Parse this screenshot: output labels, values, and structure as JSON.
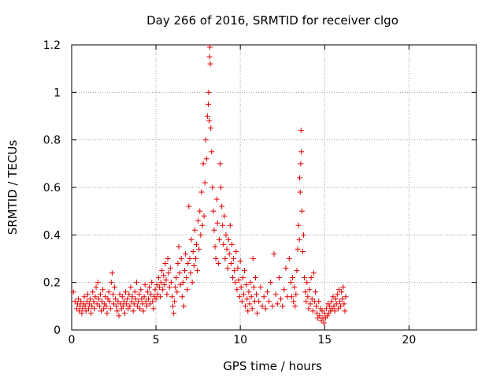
{
  "chart_data": {
    "type": "scatter",
    "title": "Day 266 of 2016, SRMTID for receiver clgo",
    "xlabel": "GPS time / hours",
    "ylabel": "SRMTID / TECUs",
    "xlim": [
      0,
      24
    ],
    "ylim": [
      0,
      1.2
    ],
    "xticks": [
      0,
      5,
      10,
      15,
      20
    ],
    "xtick_labels": [
      "0",
      "5",
      "10",
      "15",
      "20"
    ],
    "yticks": [
      0,
      0.2,
      0.4,
      0.6,
      0.8,
      1.0,
      1.2
    ],
    "ytick_labels": [
      "0",
      "0.2",
      "0.4",
      "0.6",
      "0.8",
      "1",
      "1.2"
    ],
    "grid": true,
    "marker": "+",
    "color": "#e00000",
    "series": [
      {
        "name": "SRMTID",
        "points": [
          [
            0.1,
            0.16
          ],
          [
            0.2,
            0.12
          ],
          [
            0.3,
            0.09
          ],
          [
            0.35,
            0.11
          ],
          [
            0.4,
            0.13
          ],
          [
            0.45,
            0.08
          ],
          [
            0.5,
            0.1
          ],
          [
            0.55,
            0.12
          ],
          [
            0.6,
            0.07
          ],
          [
            0.65,
            0.09
          ],
          [
            0.7,
            0.11
          ],
          [
            0.75,
            0.14
          ],
          [
            0.8,
            0.1
          ],
          [
            0.85,
            0.08
          ],
          [
            0.9,
            0.12
          ],
          [
            0.95,
            0.15
          ],
          [
            1.0,
            0.09
          ],
          [
            1.05,
            0.11
          ],
          [
            1.1,
            0.13
          ],
          [
            1.15,
            0.07
          ],
          [
            1.2,
            0.1
          ],
          [
            1.25,
            0.16
          ],
          [
            1.3,
            0.12
          ],
          [
            1.35,
            0.09
          ],
          [
            1.4,
            0.14
          ],
          [
            1.45,
            0.18
          ],
          [
            1.5,
            0.11
          ],
          [
            1.55,
            0.2
          ],
          [
            1.6,
            0.13
          ],
          [
            1.65,
            0.1
          ],
          [
            1.7,
            0.15
          ],
          [
            1.75,
            0.08
          ],
          [
            1.8,
            0.12
          ],
          [
            1.85,
            0.17
          ],
          [
            1.9,
            0.09
          ],
          [
            1.95,
            0.11
          ],
          [
            2.0,
            0.14
          ],
          [
            2.05,
            0.1
          ],
          [
            2.1,
            0.07
          ],
          [
            2.15,
            0.13
          ],
          [
            2.2,
            0.16
          ],
          [
            2.25,
            0.12
          ],
          [
            2.3,
            0.09
          ],
          [
            2.35,
            0.2
          ],
          [
            2.4,
            0.24
          ],
          [
            2.45,
            0.15
          ],
          [
            2.5,
            0.11
          ],
          [
            2.55,
            0.18
          ],
          [
            2.6,
            0.13
          ],
          [
            2.65,
            0.1
          ],
          [
            2.7,
            0.08
          ],
          [
            2.75,
            0.12
          ],
          [
            2.8,
            0.06
          ],
          [
            2.85,
            0.15
          ],
          [
            2.9,
            0.11
          ],
          [
            2.95,
            0.09
          ],
          [
            3.0,
            0.14
          ],
          [
            3.05,
            0.1
          ],
          [
            3.1,
            0.12
          ],
          [
            3.15,
            0.07
          ],
          [
            3.2,
            0.16
          ],
          [
            3.25,
            0.11
          ],
          [
            3.3,
            0.13
          ],
          [
            3.35,
            0.09
          ],
          [
            3.4,
            0.15
          ],
          [
            3.45,
            0.1
          ],
          [
            3.5,
            0.18
          ],
          [
            3.55,
            0.12
          ],
          [
            3.6,
            0.14
          ],
          [
            3.65,
            0.08
          ],
          [
            3.7,
            0.11
          ],
          [
            3.75,
            0.16
          ],
          [
            3.8,
            0.13
          ],
          [
            3.85,
            0.2
          ],
          [
            3.9,
            0.1
          ],
          [
            3.95,
            0.12
          ],
          [
            4.0,
            0.15
          ],
          [
            4.05,
            0.09
          ],
          [
            4.1,
            0.17
          ],
          [
            4.15,
            0.13
          ],
          [
            4.2,
            0.11
          ],
          [
            4.25,
            0.08
          ],
          [
            4.3,
            0.14
          ],
          [
            4.35,
            0.19
          ],
          [
            4.4,
            0.12
          ],
          [
            4.45,
            0.1
          ],
          [
            4.5,
            0.16
          ],
          [
            4.55,
            0.13
          ],
          [
            4.6,
            0.18
          ],
          [
            4.65,
            0.11
          ],
          [
            4.7,
            0.15
          ],
          [
            4.75,
            0.2
          ],
          [
            4.8,
            0.12
          ],
          [
            4.85,
            0.09
          ],
          [
            4.9,
            0.14
          ],
          [
            4.95,
            0.17
          ],
          [
            5.0,
            0.13
          ],
          [
            5.05,
            0.19
          ],
          [
            5.1,
            0.15
          ],
          [
            5.15,
            0.22
          ],
          [
            5.2,
            0.18
          ],
          [
            5.25,
            0.14
          ],
          [
            5.3,
            0.2
          ],
          [
            5.35,
            0.25
          ],
          [
            5.4,
            0.17
          ],
          [
            5.45,
            0.23
          ],
          [
            5.5,
            0.19
          ],
          [
            5.55,
            0.28
          ],
          [
            5.6,
            0.21
          ],
          [
            5.65,
            0.15
          ],
          [
            5.7,
            0.3
          ],
          [
            5.75,
            0.24
          ],
          [
            5.8,
            0.18
          ],
          [
            5.85,
            0.26
          ],
          [
            5.9,
            0.2
          ],
          [
            5.95,
            0.14
          ],
          [
            6.0,
            0.1
          ],
          [
            6.05,
            0.07
          ],
          [
            6.1,
            0.12
          ],
          [
            6.15,
            0.18
          ],
          [
            6.2,
            0.22
          ],
          [
            6.25,
            0.16
          ],
          [
            6.3,
            0.28
          ],
          [
            6.35,
            0.35
          ],
          [
            6.4,
            0.24
          ],
          [
            6.45,
            0.19
          ],
          [
            6.5,
            0.3
          ],
          [
            6.55,
            0.14
          ],
          [
            6.6,
            0.2
          ],
          [
            6.65,
            0.1
          ],
          [
            6.7,
            0.25
          ],
          [
            6.75,
            0.32
          ],
          [
            6.8,
            0.22
          ],
          [
            6.85,
            0.17
          ],
          [
            6.9,
            0.28
          ],
          [
            6.95,
            0.52
          ],
          [
            7.0,
            0.3
          ],
          [
            7.05,
            0.24
          ],
          [
            7.1,
            0.38
          ],
          [
            7.15,
            0.2
          ],
          [
            7.2,
            0.33
          ],
          [
            7.25,
            0.27
          ],
          [
            7.3,
            0.42
          ],
          [
            7.35,
            0.3
          ],
          [
            7.4,
            0.36
          ],
          [
            7.45,
            0.25
          ],
          [
            7.5,
            0.46
          ],
          [
            7.55,
            0.34
          ],
          [
            7.6,
            0.5
          ],
          [
            7.65,
            0.4
          ],
          [
            7.7,
            0.58
          ],
          [
            7.75,
            0.44
          ],
          [
            7.8,
            0.7
          ],
          [
            7.85,
            0.48
          ],
          [
            7.9,
            0.62
          ],
          [
            7.95,
            0.8
          ],
          [
            8.0,
            0.72
          ],
          [
            8.05,
            0.9
          ],
          [
            8.1,
            0.95
          ],
          [
            8.12,
            1.0
          ],
          [
            8.15,
            0.88
          ],
          [
            8.18,
            1.15
          ],
          [
            8.2,
            1.19
          ],
          [
            8.22,
            1.12
          ],
          [
            8.25,
            0.85
          ],
          [
            8.3,
            0.75
          ],
          [
            8.35,
            0.6
          ],
          [
            8.4,
            0.5
          ],
          [
            8.45,
            0.42
          ],
          [
            8.5,
            0.35
          ],
          [
            8.55,
            0.3
          ],
          [
            8.6,
            0.55
          ],
          [
            8.65,
            0.45
          ],
          [
            8.7,
            0.28
          ],
          [
            8.75,
            0.38
          ],
          [
            8.8,
            0.7
          ],
          [
            8.85,
            0.6
          ],
          [
            8.9,
            0.52
          ],
          [
            8.95,
            0.44
          ],
          [
            9.0,
            0.36
          ],
          [
            9.05,
            0.48
          ],
          [
            9.1,
            0.3
          ],
          [
            9.15,
            0.4
          ],
          [
            9.2,
            0.34
          ],
          [
            9.25,
            0.26
          ],
          [
            9.3,
            0.38
          ],
          [
            9.35,
            0.32
          ],
          [
            9.4,
            0.44
          ],
          [
            9.45,
            0.28
          ],
          [
            9.5,
            0.36
          ],
          [
            9.55,
            0.22
          ],
          [
            9.6,
            0.3
          ],
          [
            9.65,
            0.25
          ],
          [
            9.7,
            0.2
          ],
          [
            9.75,
            0.33
          ],
          [
            9.8,
            0.17
          ],
          [
            9.85,
            0.26
          ],
          [
            9.9,
            0.21
          ],
          [
            9.95,
            0.14
          ],
          [
            10.0,
            0.29
          ],
          [
            10.05,
            0.18
          ],
          [
            10.1,
            0.12
          ],
          [
            10.15,
            0.22
          ],
          [
            10.2,
            0.15
          ],
          [
            10.25,
            0.25
          ],
          [
            10.3,
            0.1
          ],
          [
            10.35,
            0.19
          ],
          [
            10.4,
            0.13
          ],
          [
            10.45,
            0.08
          ],
          [
            10.5,
            0.16
          ],
          [
            10.55,
            0.11
          ],
          [
            10.6,
            0.2
          ],
          [
            10.65,
            0.14
          ],
          [
            10.7,
            0.09
          ],
          [
            10.75,
            0.3
          ],
          [
            10.8,
            0.18
          ],
          [
            10.85,
            0.12
          ],
          [
            10.9,
            0.22
          ],
          [
            10.95,
            0.15
          ],
          [
            11.0,
            0.07
          ],
          [
            11.1,
            0.12
          ],
          [
            11.2,
            0.18
          ],
          [
            11.3,
            0.1
          ],
          [
            11.4,
            0.14
          ],
          [
            11.5,
            0.09
          ],
          [
            11.6,
            0.16
          ],
          [
            11.7,
            0.12
          ],
          [
            11.8,
            0.2
          ],
          [
            11.9,
            0.1
          ],
          [
            12.0,
            0.32
          ],
          [
            12.1,
            0.15
          ],
          [
            12.2,
            0.11
          ],
          [
            12.3,
            0.22
          ],
          [
            12.4,
            0.13
          ],
          [
            12.5,
            0.1
          ],
          [
            12.6,
            0.17
          ],
          [
            12.7,
            0.26
          ],
          [
            12.8,
            0.14
          ],
          [
            12.9,
            0.3
          ],
          [
            13.0,
            0.2
          ],
          [
            13.05,
            0.14
          ],
          [
            13.1,
            0.22
          ],
          [
            13.15,
            0.12
          ],
          [
            13.2,
            0.18
          ],
          [
            13.25,
            0.1
          ],
          [
            13.3,
            0.15
          ],
          [
            13.35,
            0.25
          ],
          [
            13.4,
            0.34
          ],
          [
            13.45,
            0.44
          ],
          [
            13.5,
            0.38
          ],
          [
            13.52,
            0.64
          ],
          [
            13.55,
            0.58
          ],
          [
            13.58,
            0.7
          ],
          [
            13.6,
            0.84
          ],
          [
            13.62,
            0.75
          ],
          [
            13.65,
            0.5
          ],
          [
            13.7,
            0.33
          ],
          [
            13.75,
            0.4
          ],
          [
            13.8,
            0.22
          ],
          [
            13.85,
            0.16
          ],
          [
            13.9,
            0.12
          ],
          [
            13.95,
            0.2
          ],
          [
            14.0,
            0.14
          ],
          [
            14.05,
            0.09
          ],
          [
            14.1,
            0.17
          ],
          [
            14.15,
            0.11
          ],
          [
            14.2,
            0.22
          ],
          [
            14.25,
            0.13
          ],
          [
            14.3,
            0.08
          ],
          [
            14.35,
            0.24
          ],
          [
            14.4,
            0.12
          ],
          [
            14.45,
            0.16
          ],
          [
            14.5,
            0.1
          ],
          [
            14.55,
            0.07
          ],
          [
            14.6,
            0.05
          ],
          [
            14.65,
            0.12
          ],
          [
            14.7,
            0.06
          ],
          [
            14.75,
            0.09
          ],
          [
            14.8,
            0.04
          ],
          [
            14.85,
            0.08
          ],
          [
            14.9,
            0.05
          ],
          [
            14.95,
            0.03
          ],
          [
            15.0,
            0.07
          ],
          [
            15.05,
            0.05
          ],
          [
            15.1,
            0.09
          ],
          [
            15.15,
            0.06
          ],
          [
            15.2,
            0.11
          ],
          [
            15.25,
            0.07
          ],
          [
            15.3,
            0.1
          ],
          [
            15.35,
            0.08
          ],
          [
            15.4,
            0.12
          ],
          [
            15.45,
            0.09
          ],
          [
            15.5,
            0.14
          ],
          [
            15.55,
            0.1
          ],
          [
            15.6,
            0.08
          ],
          [
            15.65,
            0.13
          ],
          [
            15.7,
            0.11
          ],
          [
            15.75,
            0.15
          ],
          [
            15.8,
            0.09
          ],
          [
            15.85,
            0.17
          ],
          [
            15.9,
            0.12
          ],
          [
            15.95,
            0.1
          ],
          [
            16.0,
            0.16
          ],
          [
            16.05,
            0.13
          ],
          [
            16.1,
            0.18
          ],
          [
            16.15,
            0.11
          ],
          [
            16.2,
            0.08
          ],
          [
            16.25,
            0.14
          ]
        ]
      }
    ]
  }
}
